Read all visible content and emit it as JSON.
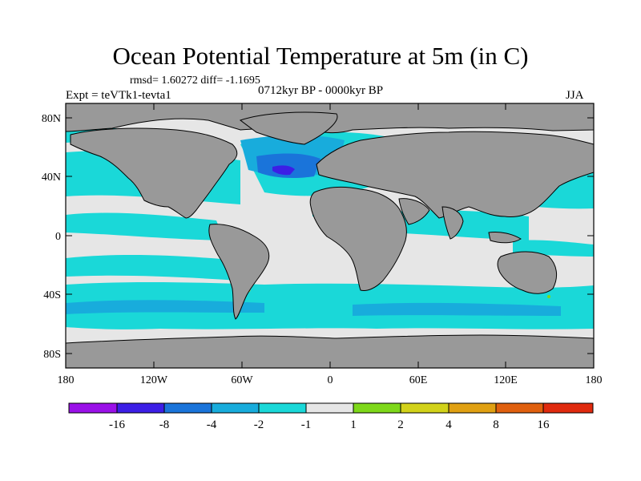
{
  "header": {
    "title": "Ocean Potential Temperature at 5m (in C)",
    "stats": "rmsd= 1.60272  diff= -1.1695",
    "experiment": "Expt = teVTk1-tevta1",
    "period": "0712kyr BP - 0000kyr BP",
    "season": "JJA"
  },
  "map": {
    "lat_labels": [
      "80N",
      "40N",
      "0",
      "40S",
      "80S"
    ],
    "lat_values": [
      80,
      40,
      0,
      -40,
      -80
    ],
    "lon_labels": [
      "180",
      "120W",
      "60W",
      "0",
      "60E",
      "120E",
      "180"
    ],
    "lon_values": [
      -180,
      -120,
      -60,
      0,
      60,
      120,
      180
    ],
    "lat_range": [
      -90,
      90
    ],
    "lon_range": [
      -180,
      180
    ],
    "land_color": "#999999",
    "field": "ocean potential temperature difference at 5m"
  },
  "colorbar": {
    "colors": [
      "#9a10e8",
      "#3c1ee6",
      "#1a74da",
      "#18acdc",
      "#1ad8d8",
      "#e6e6e6",
      "#7ed81a",
      "#d2d21a",
      "#e0a012",
      "#e0600e",
      "#e02a0e"
    ],
    "labels": [
      "-16",
      "-8",
      "-4",
      "-2",
      "-1",
      "1",
      "2",
      "4",
      "8",
      "16"
    ]
  },
  "colors": {
    "ocean_neutral": "#e6e6e6",
    "ocean_cool": "#1ad8d8",
    "ocean_cooler": "#18acdc",
    "ocean_cold": "#1a74da",
    "ocean_coldest": "#3c1ee6"
  }
}
